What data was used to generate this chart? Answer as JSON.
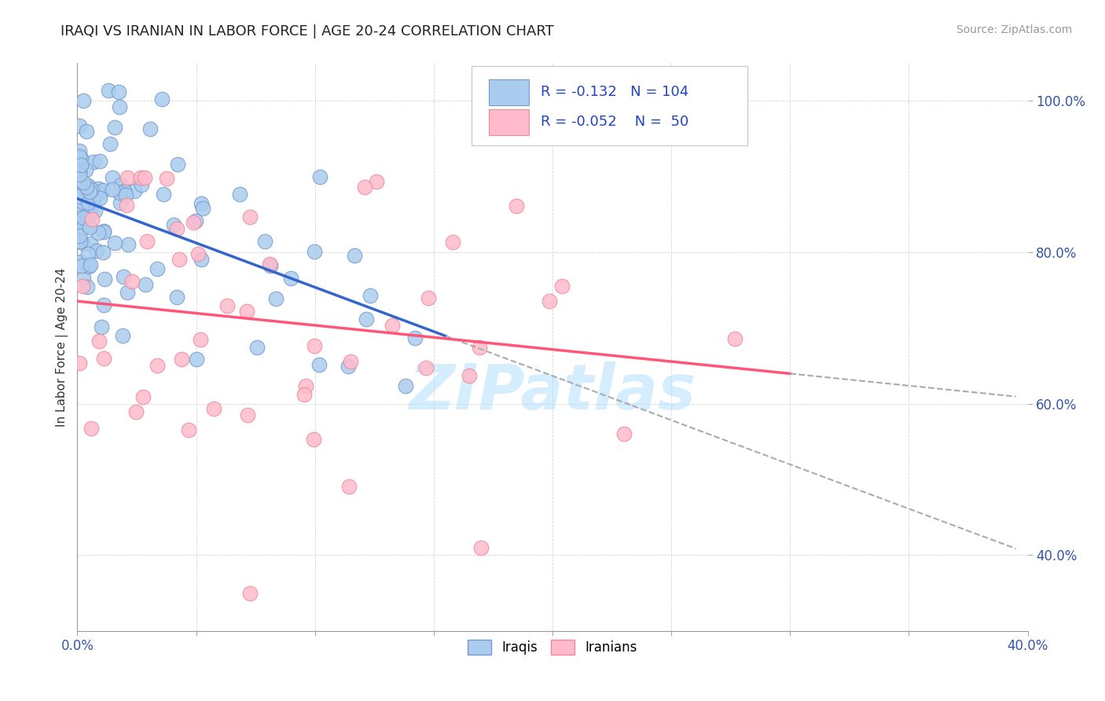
{
  "title": "IRAQI VS IRANIAN IN LABOR FORCE | AGE 20-24 CORRELATION CHART",
  "source_text": "Source: ZipAtlas.com",
  "ylabel": "In Labor Force | Age 20-24",
  "xlim": [
    0.0,
    0.4
  ],
  "ylim": [
    0.3,
    1.05
  ],
  "xticks": [
    0.0,
    0.05,
    0.1,
    0.15,
    0.2,
    0.25,
    0.3,
    0.35,
    0.4
  ],
  "yticks": [
    0.4,
    0.6,
    0.8,
    1.0
  ],
  "background_color": "#ffffff",
  "grid_color": "#cccccc",
  "watermark": "ZIPatlas",
  "iraqi_color": "#aaccee",
  "iranian_color": "#ffbbcc",
  "iraqi_edge": "#7799cc",
  "iranian_edge": "#ee8899",
  "iraqi_R": -0.132,
  "iraqi_N": 104,
  "iranian_R": -0.052,
  "iranian_N": 50,
  "legend_label_iraqi": "Iraqis",
  "legend_label_iranian": "Iranians",
  "trend_blue": "#3366cc",
  "trend_pink": "#ff5577",
  "trend_dash_color": "#aaaaaa"
}
